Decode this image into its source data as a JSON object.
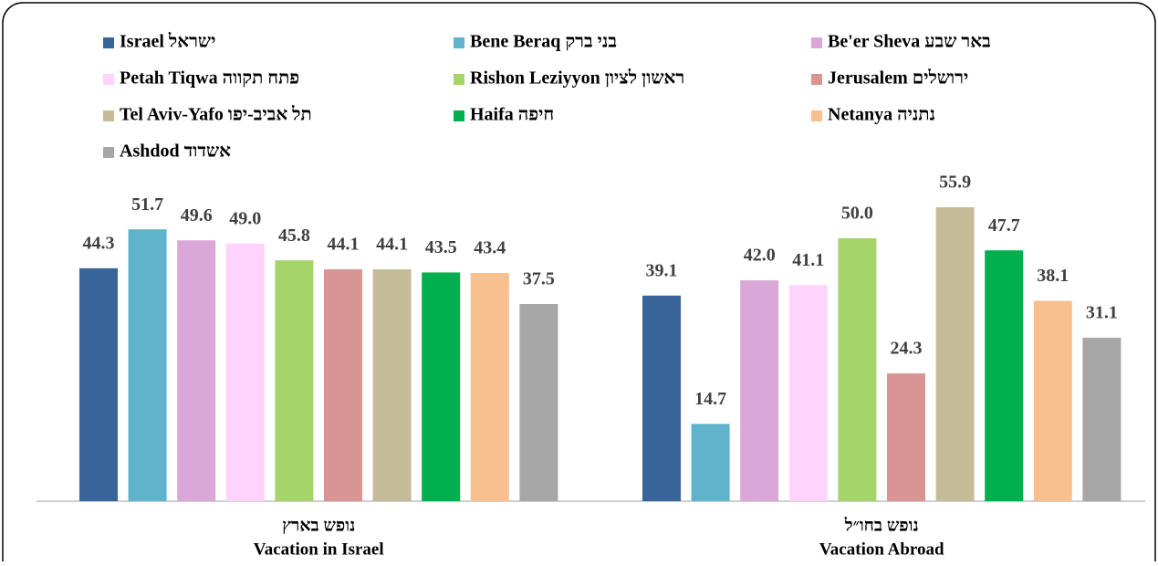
{
  "chart_data": {
    "type": "bar",
    "categories": [
      [
        "נופש בארץ",
        "Vacation in Israel"
      ],
      [
        "נופש בחו״ל",
        "Vacation Abroad"
      ]
    ],
    "series": [
      {
        "name": "Israel ישראל",
        "color": "#386499",
        "values": [
          44.3,
          39.1
        ],
        "value_labels": [
          "44.3",
          "39.1"
        ]
      },
      {
        "name": "Bene Beraq בני ברק",
        "color": "#5fb3cb",
        "values": [
          51.7,
          14.7
        ],
        "value_labels": [
          "51.7",
          "14.7"
        ]
      },
      {
        "name": "Be'er Sheva באר שבע",
        "color": "#d9a8d8",
        "values": [
          49.6,
          42.0
        ],
        "value_labels": [
          "49.6",
          "42.0"
        ]
      },
      {
        "name": "Petah Tiqwa פתח תקווה",
        "color": "#ffd3fb",
        "values": [
          49.0,
          41.1
        ],
        "value_labels": [
          "49.0",
          "41.1"
        ]
      },
      {
        "name": "Rishon Leziyyon ראשון לציון",
        "color": "#a5d46b",
        "values": [
          45.8,
          50.0
        ],
        "value_labels": [
          "45.8",
          "50.0"
        ]
      },
      {
        "name": "Jerusalem ירושלים",
        "color": "#d99594",
        "values": [
          44.1,
          24.3
        ],
        "value_labels": [
          "44.1",
          "24.3"
        ]
      },
      {
        "name": "Tel Aviv-Yafo תל אביב-יפו",
        "color": "#c4bc98",
        "values": [
          44.1,
          55.9
        ],
        "value_labels": [
          "44.1",
          "55.9"
        ]
      },
      {
        "name": "Haifa חיפה",
        "color": "#00b04f",
        "values": [
          43.5,
          47.7
        ],
        "value_labels": [
          "43.5",
          "47.7"
        ]
      },
      {
        "name": "Netanya נתניה",
        "color": "#f9c08f",
        "values": [
          43.4,
          38.1
        ],
        "value_labels": [
          "43.4",
          "38.1"
        ]
      },
      {
        "name": "Ashdod אשדוד",
        "color": "#a6a6a6",
        "values": [
          37.5,
          31.1
        ],
        "value_labels": [
          "37.5",
          "31.1"
        ]
      }
    ]
  }
}
